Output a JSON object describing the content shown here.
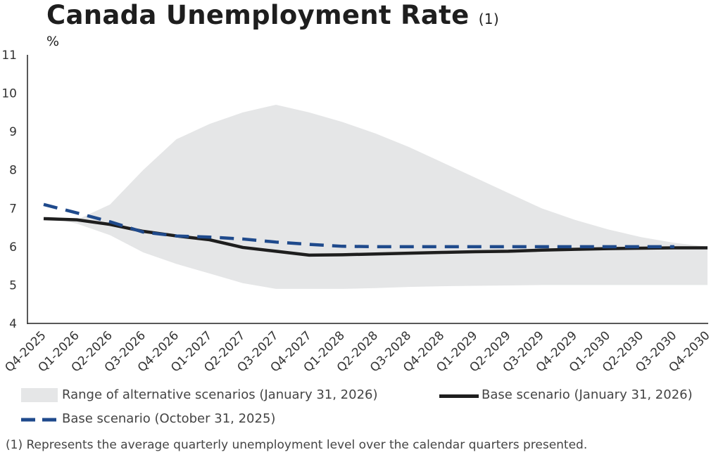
{
  "title": "Canada Unemployment Rate",
  "title_note": "(1)",
  "footnote": "(1)  Represents the average quarterly unemployment level over the calendar quarters presented.",
  "chart_data": {
    "type": "line",
    "ylabel": "%",
    "ylim": [
      4,
      11
    ],
    "yticks": [
      4,
      5,
      6,
      7,
      8,
      9,
      10,
      11
    ],
    "grid": false,
    "legend_placement": "bottom",
    "categories": [
      "Q4-2025",
      "Q1-2026",
      "Q2-2026",
      "Q3-2026",
      "Q4-2026",
      "Q1-2027",
      "Q2-2027",
      "Q3-2027",
      "Q4-2027",
      "Q1-2028",
      "Q2-2028",
      "Q3-2028",
      "Q4-2028",
      "Q1-2029",
      "Q2-2029",
      "Q3-2029",
      "Q4-2029",
      "Q1-2030",
      "Q2-2030",
      "Q3-2030",
      "Q4-2030"
    ],
    "range": {
      "name": "Range of alternative scenarios (January 31, 2026)",
      "color": "#e5e6e7",
      "upper": [
        6.8,
        6.7,
        7.1,
        8.0,
        8.8,
        9.2,
        9.5,
        9.7,
        9.5,
        9.25,
        8.95,
        8.6,
        8.2,
        7.8,
        7.4,
        7.0,
        6.7,
        6.45,
        6.25,
        6.1,
        6.0
      ],
      "lower": [
        6.8,
        6.6,
        6.3,
        5.85,
        5.55,
        5.3,
        5.05,
        4.9,
        4.9,
        4.9,
        4.92,
        4.95,
        4.97,
        4.98,
        4.99,
        5.0,
        5.0,
        5.0,
        5.0,
        5.0,
        5.0
      ]
    },
    "series": [
      {
        "name": "Base scenario (January 31, 2026)",
        "color": "#1e1e1e",
        "style": "solid",
        "values": [
          6.73,
          6.7,
          6.58,
          6.4,
          6.28,
          6.18,
          5.98,
          5.88,
          5.78,
          5.79,
          5.81,
          5.83,
          5.85,
          5.87,
          5.88,
          5.91,
          5.93,
          5.95,
          5.96,
          5.97,
          5.97
        ]
      },
      {
        "name": "Base scenario (October 31, 2025)",
        "color": "#1f4a8c",
        "style": "dashed",
        "values": [
          7.1,
          6.88,
          6.65,
          6.38,
          6.28,
          6.25,
          6.2,
          6.12,
          6.06,
          6.01,
          6.0,
          6.0,
          6.0,
          6.0,
          6.0,
          6.0,
          6.0,
          6.0,
          6.0,
          6.0,
          null
        ]
      }
    ]
  }
}
